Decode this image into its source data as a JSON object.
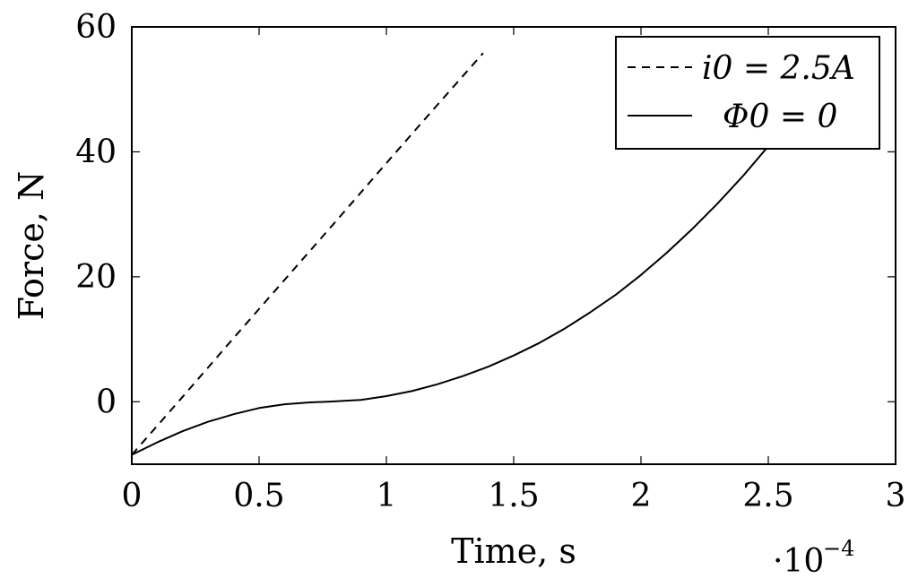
{
  "chart_data": {
    "type": "line",
    "xlabel": "Time, s",
    "ylabel": "Force, N",
    "x_multiplier_label": "·10",
    "x_multiplier_exponent": "−4",
    "xlim": [
      0,
      3
    ],
    "ylim": [
      -10,
      60
    ],
    "x_ticks": [
      "0",
      "0.5",
      "1",
      "1.5",
      "2",
      "2.5",
      "3"
    ],
    "x_tick_values": [
      0,
      0.5,
      1,
      1.5,
      2,
      2.5,
      3
    ],
    "y_ticks": [
      "0",
      "20",
      "40",
      "60"
    ],
    "y_tick_values": [
      0,
      20,
      40,
      60
    ],
    "grid": false,
    "legend_position": "top-right",
    "series": [
      {
        "name": "i0 = 2.5A",
        "style": "dashed",
        "color": "#000000",
        "x": [
          0,
          0.2,
          0.4,
          0.6,
          0.8,
          1.0,
          1.2,
          1.38
        ],
        "y": [
          -8.5,
          0.8,
          10.2,
          19.5,
          28.8,
          38.2,
          47.5,
          55.8
        ]
      },
      {
        "name": "Φ0 = 0",
        "style": "solid",
        "color": "#000000",
        "x": [
          0,
          0.1,
          0.2,
          0.3,
          0.4,
          0.5,
          0.6,
          0.7,
          0.77,
          0.9,
          1.0,
          1.1,
          1.2,
          1.3,
          1.4,
          1.5,
          1.6,
          1.7,
          1.8,
          1.9,
          2.0,
          2.1,
          2.2,
          2.3,
          2.4,
          2.5,
          2.6,
          2.7
        ],
        "y": [
          -8.5,
          -6.5,
          -4.7,
          -3.2,
          -2.0,
          -1.0,
          -0.4,
          -0.1,
          0.0,
          0.3,
          0.9,
          1.7,
          2.8,
          4.1,
          5.6,
          7.4,
          9.4,
          11.7,
          14.3,
          17.1,
          20.3,
          23.8,
          27.6,
          31.7,
          36.1,
          40.9,
          46.0,
          51.5
        ]
      }
    ],
    "legend": [
      {
        "label": "i0 = 2.5A",
        "style": "dashed"
      },
      {
        "label": "Φ0 = 0",
        "style": "solid"
      }
    ]
  }
}
